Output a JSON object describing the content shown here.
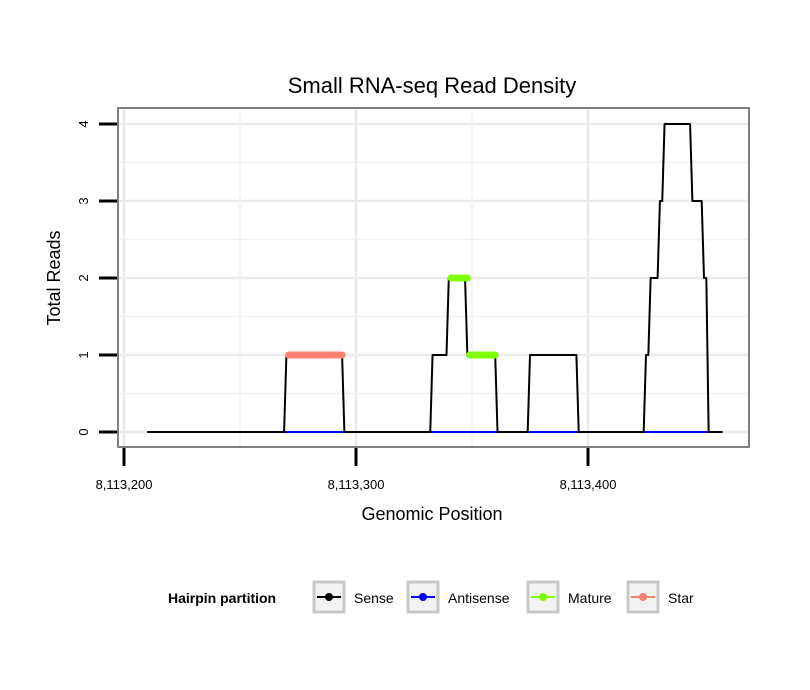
{
  "chart_data": {
    "type": "line",
    "title": "Small RNA-seq Read Density",
    "xlabel": "Genomic Position",
    "ylabel": "Total Reads",
    "xlim": [
      8113190,
      8113470
    ],
    "ylim": [
      -0.2,
      4.1
    ],
    "x_ticks": [
      8113200,
      8113300,
      8113400
    ],
    "x_tick_labels": [
      "8,113,200",
      "8,113,300",
      "8,113,400"
    ],
    "y_ticks": [
      0,
      1,
      2,
      3,
      4
    ],
    "y_tick_labels": [
      "0",
      "1",
      "2",
      "3",
      "4"
    ],
    "grid": true,
    "legend": {
      "title": "Hairpin partition",
      "position": "bottom",
      "entries": [
        {
          "name": "Sense",
          "color": "#000000"
        },
        {
          "name": "Antisense",
          "color": "#0000ff"
        },
        {
          "name": "Mature",
          "color": "#7fff00"
        },
        {
          "name": "Star",
          "color": "#fa8072"
        }
      ]
    },
    "series": [
      {
        "name": "Sense",
        "color": "#000000",
        "points": [
          [
            8113210,
            0
          ],
          [
            8113269,
            0
          ],
          [
            8113270,
            1
          ],
          [
            8113294,
            1
          ],
          [
            8113295,
            0
          ],
          [
            8113332,
            0
          ],
          [
            8113333,
            1
          ],
          [
            8113339,
            1
          ],
          [
            8113340,
            2
          ],
          [
            8113347,
            2
          ],
          [
            8113348,
            1
          ],
          [
            8113360,
            1
          ],
          [
            8113361,
            0
          ],
          [
            8113374,
            0
          ],
          [
            8113375,
            1
          ],
          [
            8113395,
            1
          ],
          [
            8113396,
            0
          ],
          [
            8113424,
            0
          ],
          [
            8113425,
            1
          ],
          [
            8113426,
            1
          ],
          [
            8113427,
            2
          ],
          [
            8113430,
            2
          ],
          [
            8113431,
            3
          ],
          [
            8113432,
            3
          ],
          [
            8113433,
            4
          ],
          [
            8113444,
            4
          ],
          [
            8113445,
            3
          ],
          [
            8113449,
            3
          ],
          [
            8113450,
            2
          ],
          [
            8113451,
            2
          ],
          [
            8113452,
            0
          ],
          [
            8113458,
            0
          ]
        ]
      },
      {
        "name": "Antisense",
        "color": "#0000ff",
        "points": [
          [
            8113210,
            0
          ],
          [
            8113458,
            0
          ]
        ]
      },
      {
        "name": "Mature",
        "color": "#7fff00",
        "segments": [
          {
            "x": [
              8113341,
              8113348
            ],
            "y": 2
          },
          {
            "x": [
              8113349,
              8113360
            ],
            "y": 1
          }
        ]
      },
      {
        "name": "Star",
        "color": "#fa8072",
        "segments": [
          {
            "x": [
              8113271,
              8113294
            ],
            "y": 1
          }
        ]
      }
    ]
  }
}
